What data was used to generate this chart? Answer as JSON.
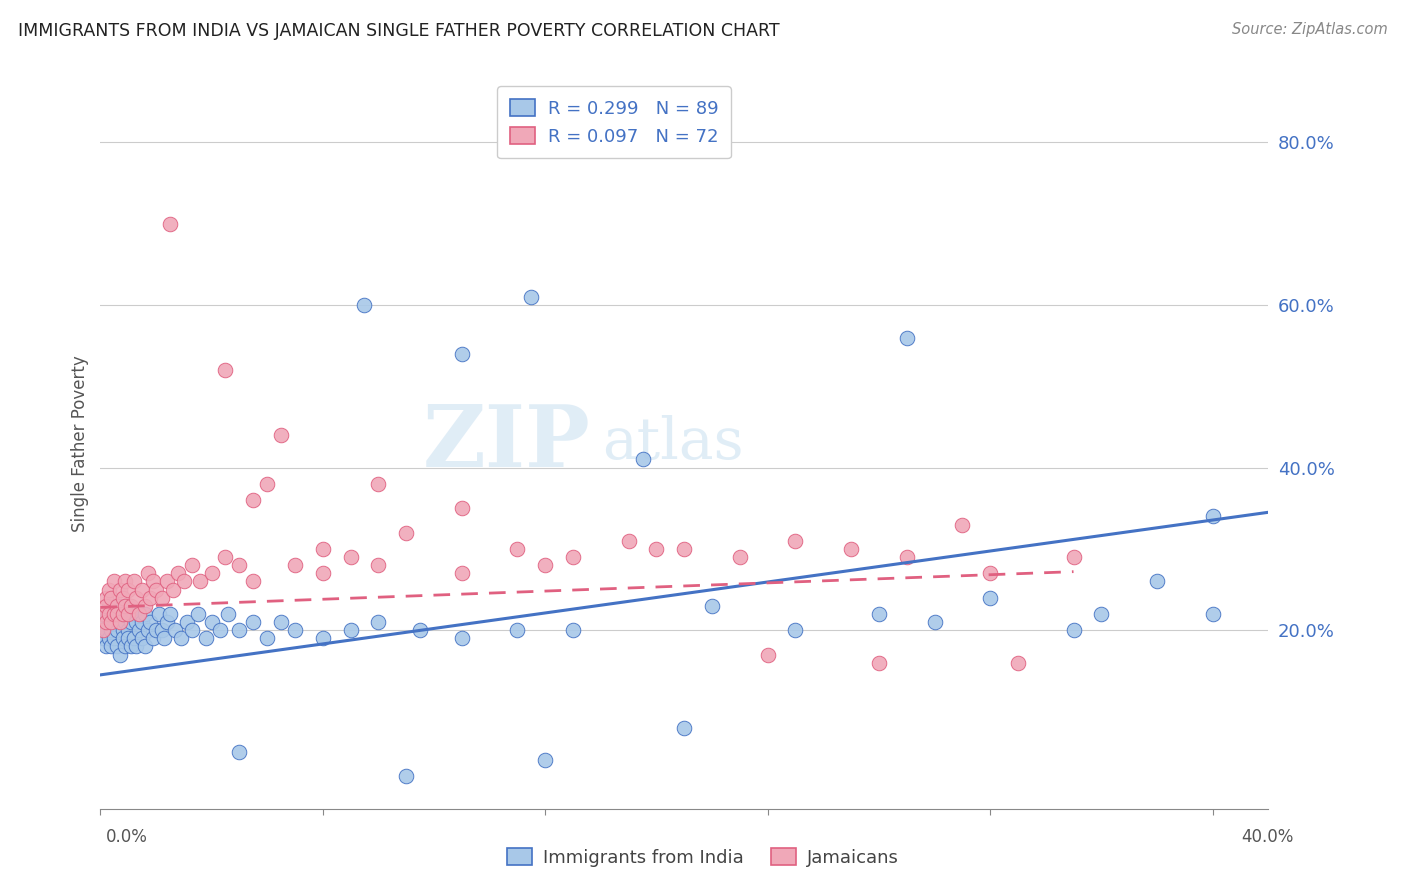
{
  "title": "IMMIGRANTS FROM INDIA VS JAMAICAN SINGLE FATHER POVERTY CORRELATION CHART",
  "source": "Source: ZipAtlas.com",
  "ylabel": "Single Father Poverty",
  "right_ytick_vals": [
    0.8,
    0.6,
    0.4,
    0.2
  ],
  "right_ytick_labels": [
    "80.0%",
    "60.0%",
    "40.0%",
    "20.0%"
  ],
  "xlim": [
    0.0,
    0.42
  ],
  "ylim": [
    -0.02,
    0.88
  ],
  "color_india": "#a8c8e8",
  "color_jamaicans": "#f0a8b8",
  "line_color_india": "#4472c4",
  "line_color_jamaicans": "#e06080",
  "watermark_zip": "ZIP",
  "watermark_atlas": "atlas",
  "india_trend_x": [
    0.0,
    0.42
  ],
  "india_trend_y": [
    0.145,
    0.345
  ],
  "jamaicans_trend_x": [
    0.0,
    0.35
  ],
  "jamaicans_trend_y": [
    0.228,
    0.272
  ],
  "india_x": [
    0.001,
    0.001,
    0.002,
    0.002,
    0.002,
    0.003,
    0.003,
    0.003,
    0.004,
    0.004,
    0.004,
    0.005,
    0.005,
    0.005,
    0.006,
    0.006,
    0.006,
    0.007,
    0.007,
    0.007,
    0.008,
    0.008,
    0.008,
    0.009,
    0.009,
    0.009,
    0.01,
    0.01,
    0.011,
    0.011,
    0.012,
    0.012,
    0.013,
    0.013,
    0.014,
    0.014,
    0.015,
    0.015,
    0.016,
    0.016,
    0.017,
    0.018,
    0.019,
    0.02,
    0.021,
    0.022,
    0.023,
    0.024,
    0.025,
    0.027,
    0.029,
    0.031,
    0.033,
    0.035,
    0.038,
    0.04,
    0.043,
    0.046,
    0.05,
    0.055,
    0.06,
    0.065,
    0.07,
    0.08,
    0.09,
    0.1,
    0.115,
    0.13,
    0.15,
    0.17,
    0.195,
    0.22,
    0.25,
    0.28,
    0.3,
    0.32,
    0.35,
    0.36,
    0.38,
    0.4,
    0.4,
    0.29,
    0.155,
    0.13,
    0.095,
    0.05,
    0.11,
    0.16,
    0.21
  ],
  "india_y": [
    0.21,
    0.19,
    0.22,
    0.18,
    0.2,
    0.21,
    0.19,
    0.23,
    0.2,
    0.18,
    0.22,
    0.21,
    0.19,
    0.23,
    0.2,
    0.18,
    0.22,
    0.21,
    0.17,
    0.23,
    0.2,
    0.19,
    0.22,
    0.21,
    0.18,
    0.23,
    0.2,
    0.19,
    0.21,
    0.18,
    0.22,
    0.19,
    0.21,
    0.18,
    0.22,
    0.2,
    0.21,
    0.19,
    0.22,
    0.18,
    0.2,
    0.21,
    0.19,
    0.2,
    0.22,
    0.2,
    0.19,
    0.21,
    0.22,
    0.2,
    0.19,
    0.21,
    0.2,
    0.22,
    0.19,
    0.21,
    0.2,
    0.22,
    0.2,
    0.21,
    0.19,
    0.21,
    0.2,
    0.19,
    0.2,
    0.21,
    0.2,
    0.54,
    0.2,
    0.2,
    0.41,
    0.23,
    0.2,
    0.22,
    0.21,
    0.24,
    0.2,
    0.22,
    0.26,
    0.34,
    0.22,
    0.56,
    0.61,
    0.19,
    0.6,
    0.05,
    0.02,
    0.04,
    0.08
  ],
  "jamaicans_x": [
    0.001,
    0.001,
    0.002,
    0.002,
    0.002,
    0.003,
    0.003,
    0.004,
    0.004,
    0.005,
    0.005,
    0.006,
    0.006,
    0.007,
    0.007,
    0.008,
    0.008,
    0.009,
    0.009,
    0.01,
    0.01,
    0.011,
    0.012,
    0.013,
    0.014,
    0.015,
    0.016,
    0.017,
    0.018,
    0.019,
    0.02,
    0.022,
    0.024,
    0.026,
    0.028,
    0.03,
    0.033,
    0.036,
    0.04,
    0.045,
    0.05,
    0.055,
    0.06,
    0.07,
    0.08,
    0.09,
    0.1,
    0.11,
    0.13,
    0.15,
    0.17,
    0.19,
    0.21,
    0.23,
    0.25,
    0.27,
    0.29,
    0.31,
    0.33,
    0.025,
    0.045,
    0.055,
    0.065,
    0.08,
    0.1,
    0.13,
    0.16,
    0.2,
    0.24,
    0.28,
    0.32,
    0.35
  ],
  "jamaicans_y": [
    0.22,
    0.2,
    0.24,
    0.21,
    0.23,
    0.22,
    0.25,
    0.21,
    0.24,
    0.22,
    0.26,
    0.23,
    0.22,
    0.25,
    0.21,
    0.24,
    0.22,
    0.26,
    0.23,
    0.22,
    0.25,
    0.23,
    0.26,
    0.24,
    0.22,
    0.25,
    0.23,
    0.27,
    0.24,
    0.26,
    0.25,
    0.24,
    0.26,
    0.25,
    0.27,
    0.26,
    0.28,
    0.26,
    0.27,
    0.29,
    0.28,
    0.26,
    0.38,
    0.28,
    0.27,
    0.29,
    0.28,
    0.32,
    0.27,
    0.3,
    0.29,
    0.31,
    0.3,
    0.29,
    0.31,
    0.3,
    0.29,
    0.33,
    0.16,
    0.7,
    0.52,
    0.36,
    0.44,
    0.3,
    0.38,
    0.35,
    0.28,
    0.3,
    0.17,
    0.16,
    0.27,
    0.29
  ]
}
